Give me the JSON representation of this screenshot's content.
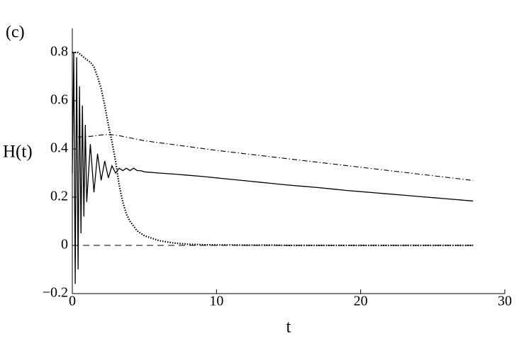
{
  "chart_data": {
    "type": "line",
    "panel_label": "(c)",
    "ylabel": "H(t)",
    "xlabel": "t",
    "xlim": [
      0,
      30
    ],
    "xticks": [
      0,
      10,
      20,
      30
    ],
    "ylim": [
      -0.2,
      0.9
    ],
    "yticks": [
      {
        "value": -0.2,
        "label": "−0.2"
      },
      0,
      0.2,
      0.4,
      0.6,
      0.8
    ],
    "grid": false,
    "x": [
      0,
      0.1,
      0.2,
      0.3,
      0.4,
      0.5,
      0.6,
      0.7,
      0.8,
      0.9,
      1,
      1.25,
      1.5,
      1.75,
      2,
      2.25,
      2.5,
      2.75,
      3,
      3.25,
      3.5,
      3.75,
      4,
      4.25,
      4.5,
      4.75,
      5,
      6,
      7,
      8,
      9,
      10,
      11,
      12,
      13,
      14,
      15,
      16,
      17,
      18,
      19,
      20,
      21,
      22,
      23,
      24,
      25,
      26,
      27,
      27.8
    ],
    "series": [
      {
        "color": "#000000",
        "style": "solid",
        "values": [
          0.3,
          0.8,
          -0.16,
          0.78,
          -0.1,
          0.66,
          0.05,
          0.58,
          0.12,
          0.5,
          0.18,
          0.42,
          0.22,
          0.38,
          0.27,
          0.35,
          0.28,
          0.33,
          0.3,
          0.32,
          0.31,
          0.32,
          0.31,
          0.32,
          0.31,
          0.31,
          0.305,
          0.3,
          0.296,
          0.291,
          0.286,
          0.28,
          0.274,
          0.268,
          0.262,
          0.256,
          0.25,
          0.245,
          0.24,
          0.234,
          0.228,
          0.223,
          0.218,
          0.213,
          0.208,
          0.203,
          0.198,
          0.193,
          0.188,
          0.184
        ]
      },
      {
        "color": "#000000",
        "style": "dotted",
        "values": [
          0.8,
          0.8,
          0.8,
          0.8,
          0.8,
          0.795,
          0.79,
          0.785,
          0.78,
          0.775,
          0.77,
          0.76,
          0.74,
          0.7,
          0.65,
          0.58,
          0.5,
          0.43,
          0.35,
          0.25,
          0.18,
          0.13,
          0.1,
          0.08,
          0.06,
          0.05,
          0.04,
          0.02,
          0.01,
          0.005,
          0.003,
          0.002,
          0.002,
          0.001,
          0.001,
          0.001,
          0,
          0,
          0,
          0,
          0,
          0,
          0,
          0,
          0,
          0,
          0,
          0,
          0,
          0
        ]
      },
      {
        "color": "#000000",
        "style": "dashdot",
        "values": [
          null,
          null,
          null,
          null,
          0.45,
          0.45,
          0.45,
          0.45,
          0.451,
          0.451,
          0.452,
          0.452,
          0.454,
          0.456,
          0.458,
          0.459,
          0.46,
          0.459,
          0.457,
          0.455,
          0.452,
          0.449,
          0.446,
          0.443,
          0.44,
          0.437,
          0.434,
          0.426,
          0.418,
          0.41,
          0.402,
          0.394,
          0.387,
          0.38,
          0.373,
          0.366,
          0.359,
          0.352,
          0.345,
          0.338,
          0.331,
          0.324,
          0.317,
          0.31,
          0.303,
          0.296,
          0.289,
          0.282,
          0.275,
          0.269
        ]
      },
      {
        "color": "#000000",
        "style": "dashed",
        "values": [
          0,
          0,
          0,
          0,
          0,
          0,
          0,
          0,
          0,
          0,
          0,
          0,
          0,
          0,
          0,
          0,
          0,
          0,
          0,
          0,
          0,
          0,
          0,
          0,
          0,
          0,
          0,
          0,
          0,
          0,
          0,
          0,
          0,
          0,
          0,
          0,
          0,
          0,
          0,
          0,
          0,
          0,
          0,
          0,
          0,
          0,
          0,
          0,
          0,
          0
        ]
      }
    ]
  }
}
